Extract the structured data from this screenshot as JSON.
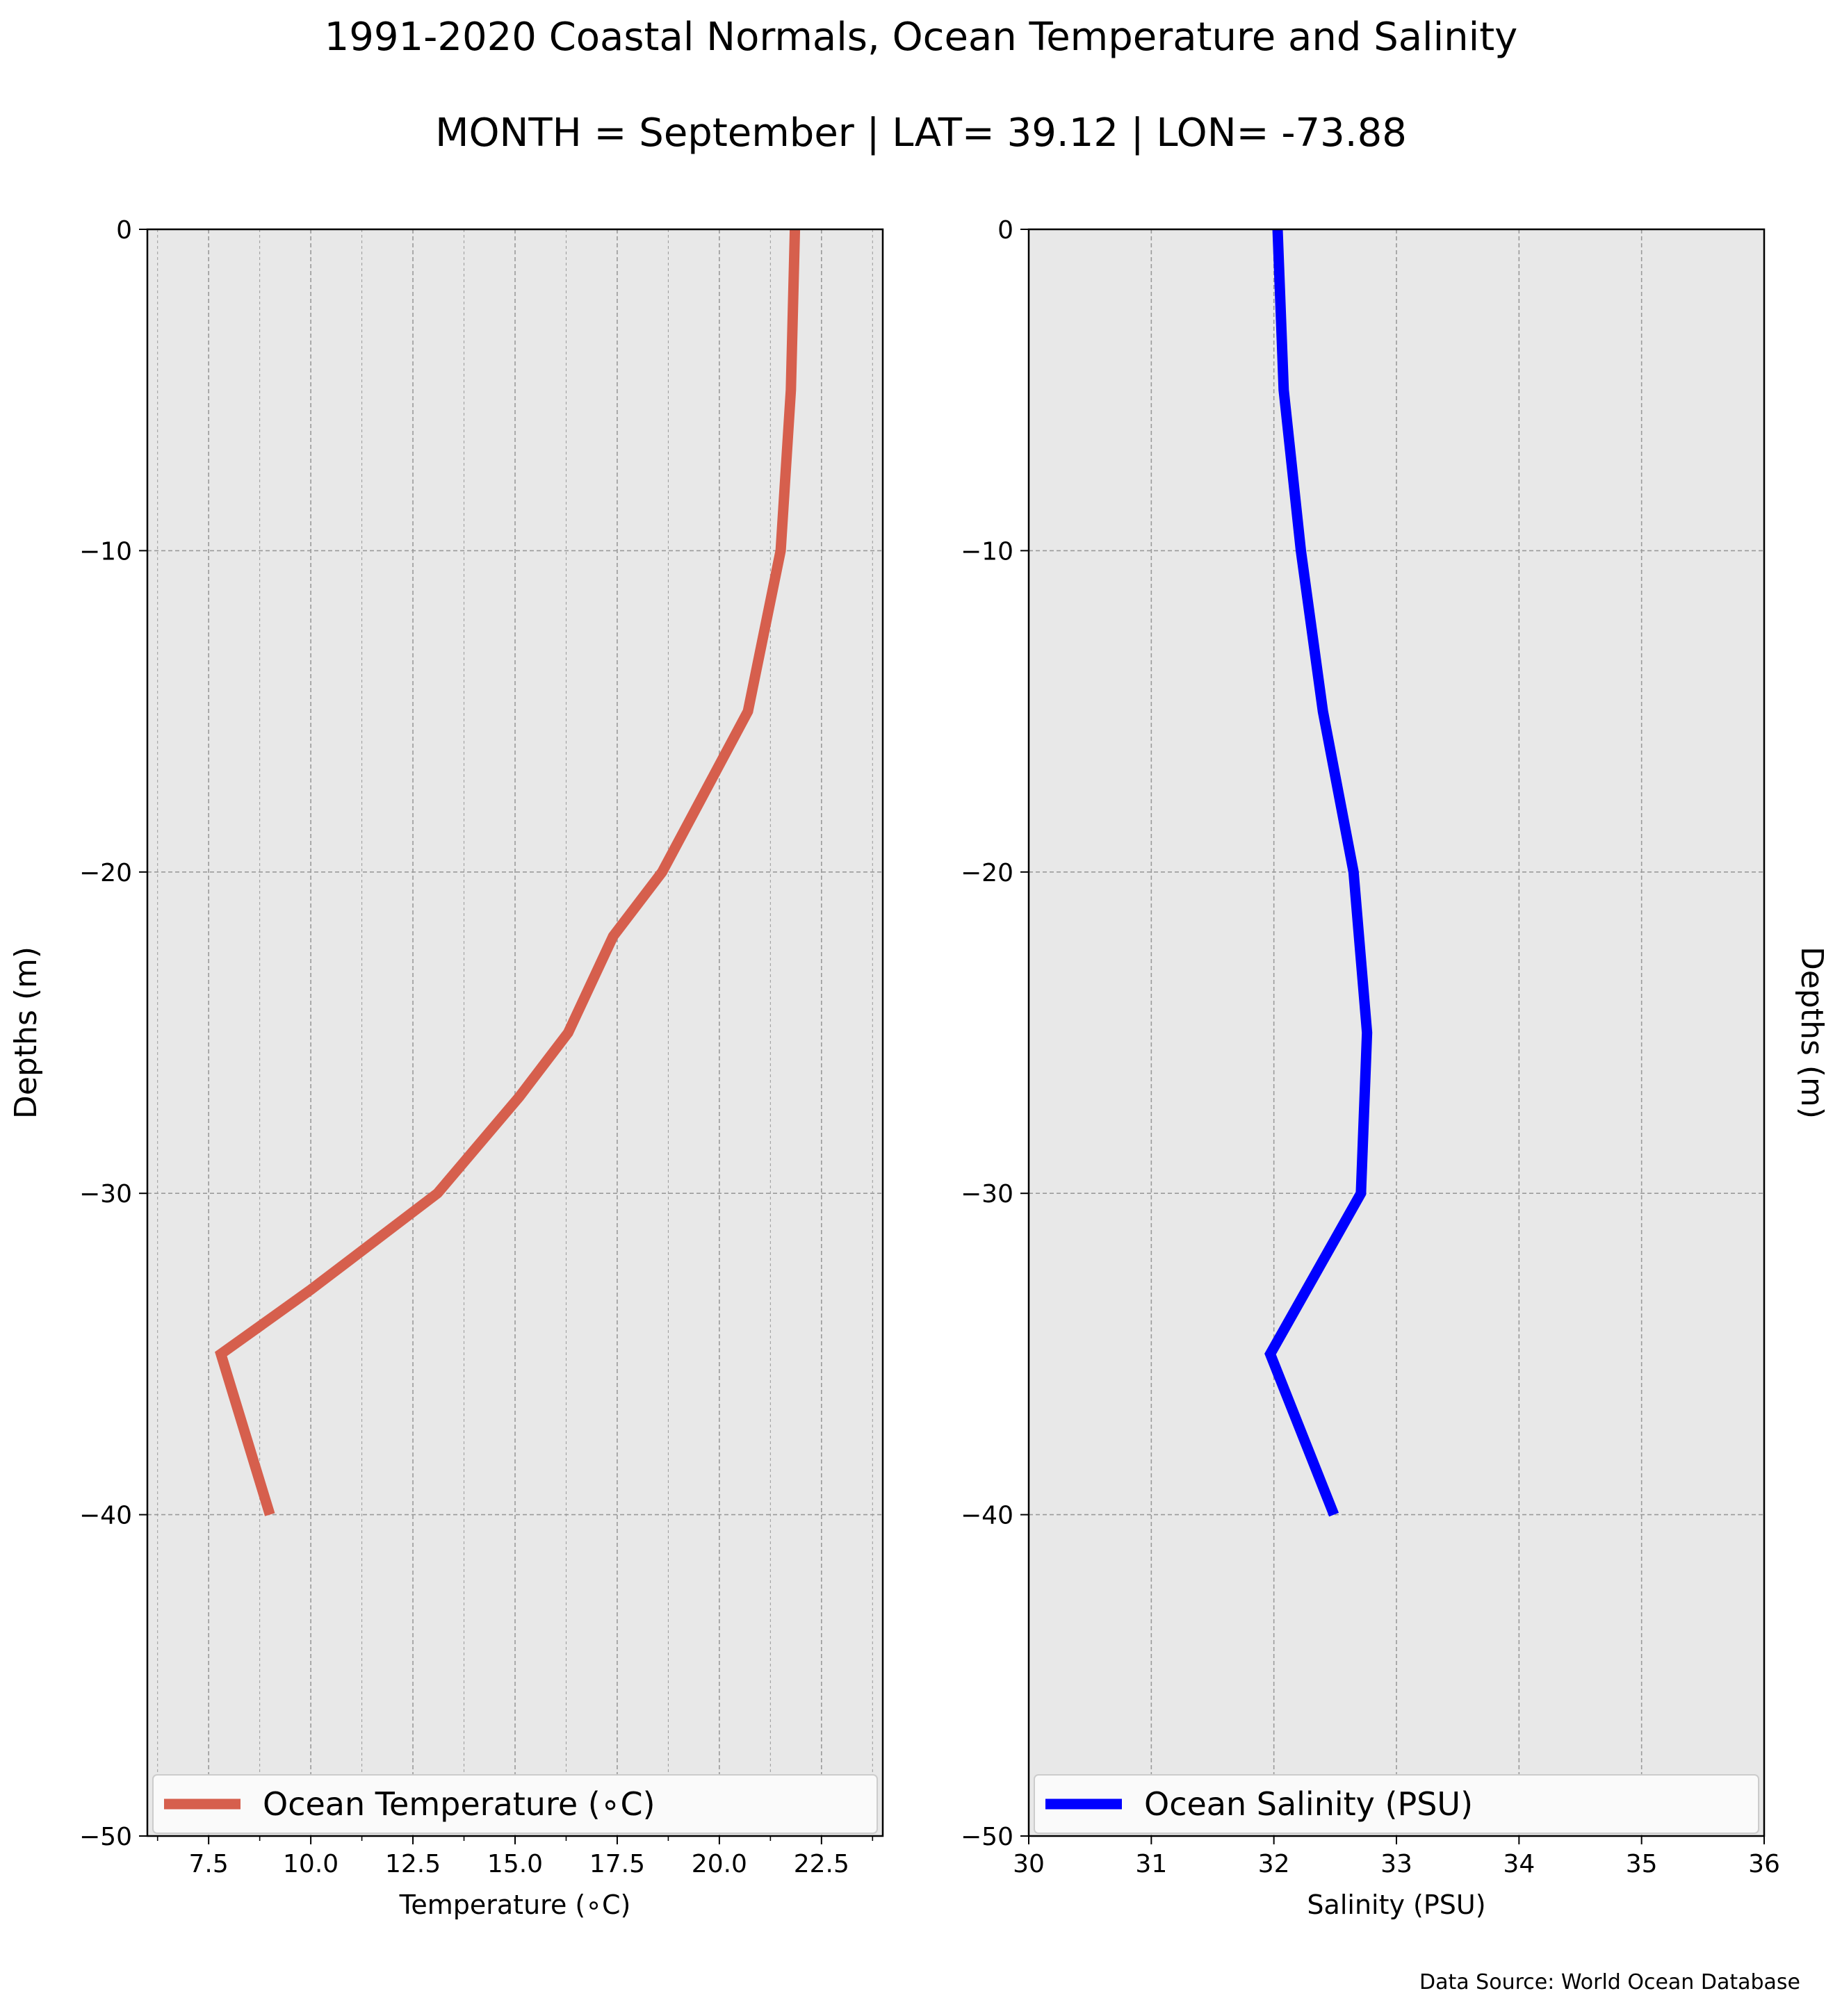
{
  "figure": {
    "title": "1991-2020 Coastal Normals, Ocean Temperature and Salinity",
    "subtitle": "MONTH = September | LAT= 39.12 | LON= -73.88",
    "source": "Data Source: World Ocean Database",
    "plot_background": "#e8e8e8",
    "grid_color": "#9a9a9a"
  },
  "chart_data": [
    {
      "type": "line",
      "xlabel": "Temperature (∘C)",
      "ylabel": "Depths (m)",
      "xlim": [
        6.0,
        24.0
      ],
      "ylim": [
        -50,
        0
      ],
      "xticks": [
        7.5,
        10.0,
        12.5,
        15.0,
        17.5,
        20.0,
        22.5
      ],
      "xtick_labels": [
        "7.5",
        "10.0",
        "12.5",
        "15.0",
        "17.5",
        "20.0",
        "22.5"
      ],
      "x_minor_ticks": [
        6.25,
        8.75,
        11.25,
        13.75,
        16.25,
        18.75,
        21.25,
        23.75
      ],
      "yticks": [
        0,
        -10,
        -20,
        -30,
        -40,
        -50
      ],
      "ytick_labels": [
        "0",
        "−10",
        "−20",
        "−30",
        "−40",
        "−50"
      ],
      "grid": true,
      "legend": "bottom",
      "series": [
        {
          "name": "Ocean Temperature (∘C)",
          "color": "#d65f4d",
          "points": [
            [
              21.85,
              0
            ],
            [
              21.75,
              -5
            ],
            [
              21.5,
              -10
            ],
            [
              20.7,
              -15
            ],
            [
              18.6,
              -20
            ],
            [
              17.4,
              -22
            ],
            [
              16.3,
              -25
            ],
            [
              15.1,
              -27
            ],
            [
              13.1,
              -30
            ],
            [
              10.0,
              -33
            ],
            [
              7.8,
              -35
            ],
            [
              9.0,
              -40
            ]
          ]
        }
      ]
    },
    {
      "type": "line",
      "xlabel": "Salinity (PSU)",
      "ylabel": "Depths (m)",
      "xlim": [
        30,
        36
      ],
      "ylim": [
        -50,
        0
      ],
      "xticks": [
        30,
        31,
        32,
        33,
        34,
        35,
        36
      ],
      "xtick_labels": [
        "30",
        "31",
        "32",
        "33",
        "34",
        "35",
        "36"
      ],
      "yticks": [
        0,
        -10,
        -20,
        -30,
        -40,
        -50
      ],
      "ytick_labels": [
        "0",
        "−10",
        "−20",
        "−30",
        "−40",
        "−50"
      ],
      "grid": true,
      "legend": "bottom",
      "series": [
        {
          "name": "Ocean Salinity (PSU)",
          "color": "#0000ff",
          "points": [
            [
              32.03,
              0
            ],
            [
              32.08,
              -5
            ],
            [
              32.22,
              -10
            ],
            [
              32.4,
              -15
            ],
            [
              32.65,
              -20
            ],
            [
              32.76,
              -25
            ],
            [
              32.71,
              -30
            ],
            [
              31.97,
              -35
            ],
            [
              32.49,
              -40
            ]
          ]
        }
      ]
    }
  ]
}
